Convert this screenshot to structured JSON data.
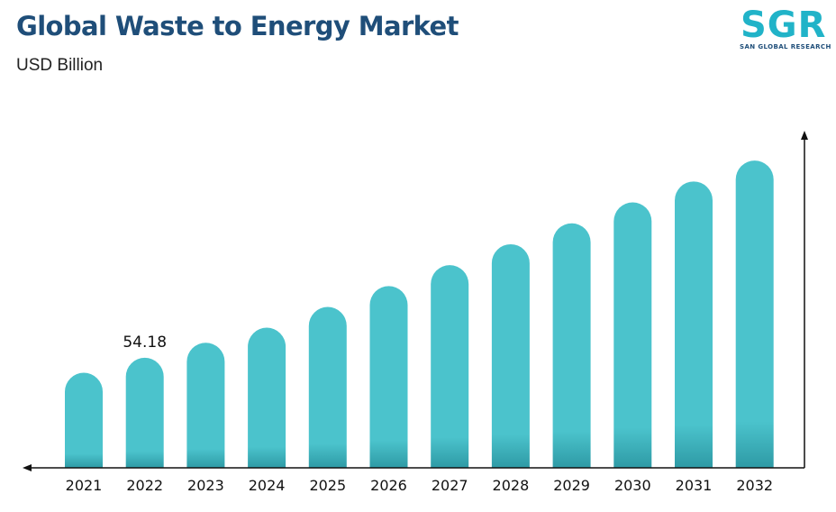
{
  "header": {
    "title": "Global Waste to Energy Market",
    "subtitle": "USD Billion"
  },
  "logo": {
    "letters": "SGR",
    "tagline": "SAN GLOBAL RESEARCH"
  },
  "colors": {
    "bar": "#4bc3cc",
    "bar_base": "#2e9aa5",
    "title": "#1f4e79",
    "axis": "#111111"
  },
  "chart_data": {
    "type": "bar",
    "title": "Global Waste to Energy Market",
    "subtitle": "USD Billion",
    "categories": [
      "2021",
      "2022",
      "2023",
      "2024",
      "2025",
      "2026",
      "2027",
      "2028",
      "2029",
      "2030",
      "2031",
      "2032"
    ],
    "values": [
      46.8,
      54.18,
      61.6,
      69.0,
      79.2,
      89.5,
      99.8,
      110.1,
      120.4,
      130.7,
      141.0,
      151.3
    ],
    "data_labels": [
      {
        "category": "2022",
        "text": "54.18"
      }
    ],
    "ylim": [
      0,
      166
    ],
    "y_axis_ticks": false,
    "grid": false,
    "legend": "none",
    "bar_shape": "rounded-top"
  }
}
